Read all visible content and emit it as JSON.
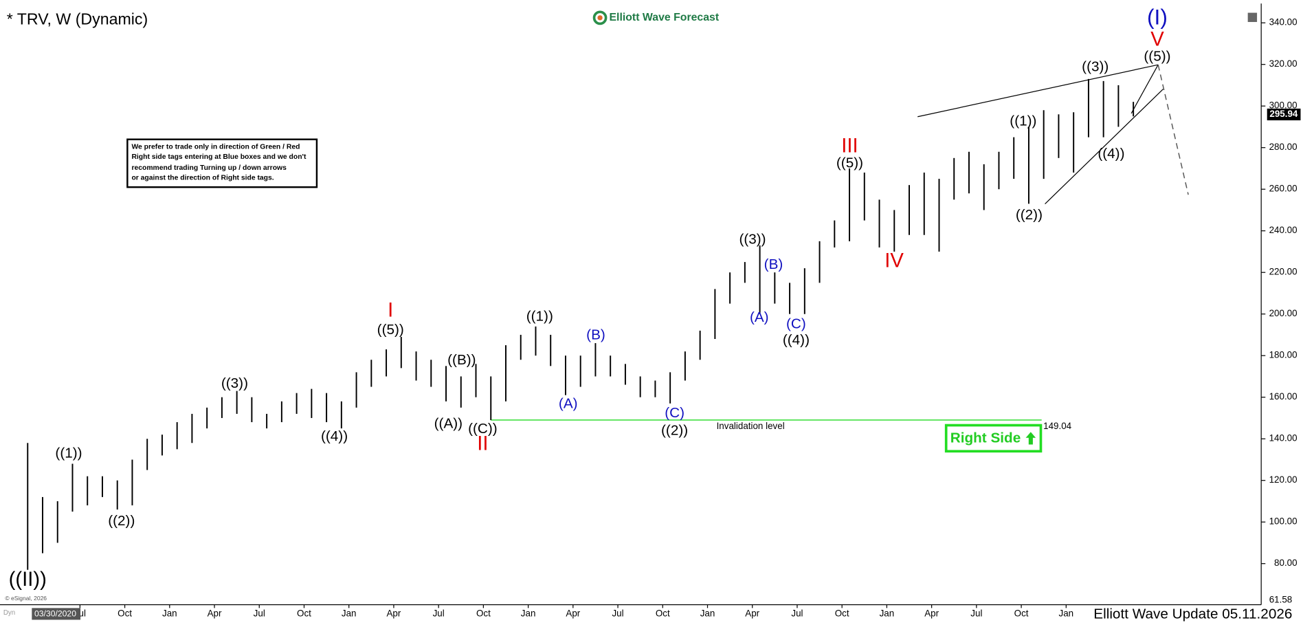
{
  "chart_data": {
    "type": "ohlc",
    "title": "* TRV, W (Dynamic)",
    "logo": "Elliott Wave Forecast",
    "note": [
      "We prefer to trade only in direction of Green / Red",
      "Right side tags entering at Blue boxes and we don't",
      "recommend trading Turning up / down arrows",
      "or against the direction of Right side tags."
    ],
    "footer": "Elliott Wave Update 05.11.2026",
    "copyright": "© eSignal, 2026",
    "cursor_date": "03/30/2020",
    "corner_text": "Dyn",
    "right_side": "Right Side",
    "color": "#000000",
    "categories": [
      null,
      null,
      null,
      null,
      null,
      null,
      null,
      null,
      null,
      null,
      null,
      null,
      null,
      null,
      null,
      null,
      null,
      null,
      null,
      null,
      null,
      null,
      null,
      null,
      null,
      null,
      null,
      null,
      null,
      null,
      null,
      null,
      null,
      null,
      null,
      null,
      null,
      null,
      null,
      null,
      null,
      null,
      null,
      null,
      null,
      null,
      null,
      null,
      null,
      null,
      null,
      null,
      null,
      null,
      null,
      null,
      null,
      null,
      null,
      null,
      null,
      null,
      null,
      null,
      null,
      null,
      null,
      null,
      null,
      null,
      null,
      null,
      null,
      null,
      null
    ],
    "high": [
      138,
      112,
      110,
      128,
      122,
      122,
      120,
      130,
      140,
      142,
      148,
      152,
      155,
      160,
      163,
      160,
      152,
      158,
      162,
      164,
      162,
      158,
      172,
      178,
      183,
      189,
      182,
      178,
      175,
      170,
      176,
      170,
      185,
      190,
      194,
      190,
      180,
      180,
      186,
      180,
      176,
      170,
      168,
      172,
      182,
      192,
      212,
      220,
      225,
      233,
      220,
      215,
      222,
      235,
      245,
      270,
      268,
      255,
      250,
      262,
      268,
      265,
      275,
      278,
      272,
      278,
      285,
      290,
      298,
      296,
      297,
      313,
      312,
      310,
      302
    ],
    "low": [
      77,
      85,
      90,
      105,
      108,
      112,
      106,
      108,
      125,
      132,
      135,
      138,
      145,
      150,
      152,
      148,
      145,
      148,
      152,
      150,
      148,
      145,
      155,
      165,
      170,
      174,
      168,
      165,
      158,
      155,
      160,
      149,
      158,
      178,
      180,
      175,
      161,
      165,
      170,
      170,
      166,
      160,
      160,
      157,
      168,
      178,
      188,
      205,
      215,
      200,
      205,
      200,
      200,
      215,
      232,
      235,
      245,
      232,
      230,
      238,
      238,
      230,
      255,
      258,
      250,
      260,
      265,
      253,
      265,
      275,
      268,
      285,
      285,
      290,
      295
    ],
    "ylim": [
      61.58,
      346.85
    ],
    "yticks": [
      {
        "value": 80,
        "label": "80.00"
      },
      {
        "value": 100,
        "label": "100.00"
      },
      {
        "value": 120,
        "label": "120.00"
      },
      {
        "value": 140,
        "label": "140.00"
      },
      {
        "value": 160,
        "label": "160.00"
      },
      {
        "value": 180,
        "label": "180.00"
      },
      {
        "value": 200,
        "label": "200.00"
      },
      {
        "value": 220,
        "label": "220.00"
      },
      {
        "value": 240,
        "label": "240.00"
      },
      {
        "value": 260,
        "label": "260.00"
      },
      {
        "value": 280,
        "label": "280.00"
      },
      {
        "value": 300,
        "label": "300.00"
      },
      {
        "value": 320,
        "label": "320.00"
      },
      {
        "value": 340,
        "label": "340.00"
      }
    ],
    "xticks": [
      {
        "value": 4,
        "label": "Jul"
      },
      {
        "value": 7,
        "label": "Oct"
      },
      {
        "value": 10,
        "label": "Jan"
      },
      {
        "value": 13,
        "label": "Apr"
      },
      {
        "value": 16,
        "label": "Jul"
      },
      {
        "value": 19,
        "label": "Oct"
      },
      {
        "value": 22,
        "label": "Jan"
      },
      {
        "value": 25,
        "label": "Apr"
      },
      {
        "value": 28,
        "label": "Jul"
      },
      {
        "value": 31,
        "label": "Oct"
      },
      {
        "value": 34,
        "label": "Jan"
      },
      {
        "value": 37,
        "label": "Apr"
      },
      {
        "value": 40,
        "label": "Jul"
      },
      {
        "value": 43,
        "label": "Oct"
      },
      {
        "value": 46,
        "label": "Jan"
      },
      {
        "value": 49,
        "label": "Apr"
      },
      {
        "value": 52,
        "label": "Jul"
      },
      {
        "value": 55,
        "label": "Oct"
      },
      {
        "value": 58,
        "label": "Jan"
      },
      {
        "value": 61,
        "label": "Apr"
      },
      {
        "value": 64,
        "label": "Jul"
      },
      {
        "value": 67,
        "label": "Oct"
      },
      {
        "value": 70,
        "label": "Jan"
      }
    ],
    "last_price": 295.94,
    "invalidation": {
      "value": 149.04,
      "label": "Invalidation level",
      "color": "#33dd33"
    },
    "annotations": [
      {
        "text": "((II))",
        "color": "#000000"
      },
      {
        "text": "((1))",
        "color": "#000000"
      },
      {
        "text": "((2))",
        "color": "#000000"
      },
      {
        "text": "((3))",
        "color": "#000000"
      },
      {
        "text": "((4))",
        "color": "#000000"
      },
      {
        "text": "((5))",
        "color": "#000000"
      },
      {
        "text": "I",
        "color": "#e00000"
      },
      {
        "text": "((A))",
        "color": "#000000"
      },
      {
        "text": "((B))",
        "color": "#000000"
      },
      {
        "text": "((C))",
        "color": "#000000"
      },
      {
        "text": "II",
        "color": "#e00000"
      },
      {
        "text": "((1))",
        "color": "#000000"
      },
      {
        "text": "(A)",
        "color": "#1010c0"
      },
      {
        "text": "(B)",
        "color": "#1010c0"
      },
      {
        "text": "(C)",
        "color": "#1010c0"
      },
      {
        "text": "((2))",
        "color": "#000000"
      },
      {
        "text": "((3))",
        "color": "#000000"
      },
      {
        "text": "(A)",
        "color": "#1010c0"
      },
      {
        "text": "(B)",
        "color": "#1010c0"
      },
      {
        "text": "(C)",
        "color": "#1010c0"
      },
      {
        "text": "((4))",
        "color": "#000000"
      },
      {
        "text": "((5))",
        "color": "#000000"
      },
      {
        "text": "III",
        "color": "#e00000"
      },
      {
        "text": "IV",
        "color": "#e00000"
      },
      {
        "text": "((1))",
        "color": "#000000"
      },
      {
        "text": "((2))",
        "color": "#000000"
      },
      {
        "text": "((3))",
        "color": "#000000"
      },
      {
        "text": "((4))",
        "color": "#000000"
      },
      {
        "text": "((5))",
        "color": "#000000"
      },
      {
        "text": "V",
        "color": "#e00000"
      },
      {
        "text": "(I)",
        "color": "#1010c0"
      }
    ]
  }
}
